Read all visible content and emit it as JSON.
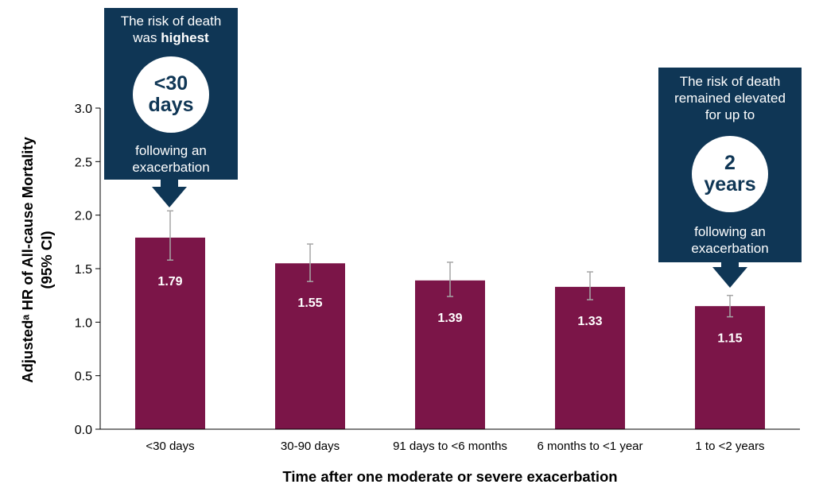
{
  "colors": {
    "bar": "#7b1548",
    "callout_bg": "#0f3655",
    "error_bar": "#a6a6a6",
    "axis": "#000000"
  },
  "chart_data": {
    "type": "bar",
    "xlabel": "Time after one moderate or severe exacerbation",
    "ylabel_line1": "Adjustedᵃ HR of All-cause Mortality",
    "ylabel_line2": "(95% CI)",
    "ylim": [
      0,
      3.0
    ],
    "yticks": [
      "0.0",
      "0.5",
      "1.0",
      "1.5",
      "2.0",
      "2.5",
      "3.0"
    ],
    "grid": false,
    "categories": [
      "<30 days",
      "30-90 days",
      "91 days to <6 months",
      "6 months to <1 year",
      "1 to <2 years"
    ],
    "values": [
      1.79,
      1.55,
      1.39,
      1.33,
      1.15
    ],
    "value_labels": [
      "1.79",
      "1.55",
      "1.39",
      "1.33",
      "1.15"
    ],
    "ci_low": [
      1.58,
      1.38,
      1.24,
      1.21,
      1.05
    ],
    "ci_high": [
      2.04,
      1.73,
      1.56,
      1.47,
      1.25
    ]
  },
  "callouts": {
    "left": {
      "line1": "The risk of death",
      "line2_pre": "was ",
      "line2_bold": "highest",
      "circle_line1": "<30",
      "circle_line2": "days",
      "after_line1": "following an",
      "after_line2": "exacerbation"
    },
    "right": {
      "line1": "The risk of death",
      "line2": "remained elevated",
      "line3": "for up to",
      "circle_line1": "2",
      "circle_line2": "years",
      "after_line1": "following an",
      "after_line2": "exacerbation"
    }
  }
}
